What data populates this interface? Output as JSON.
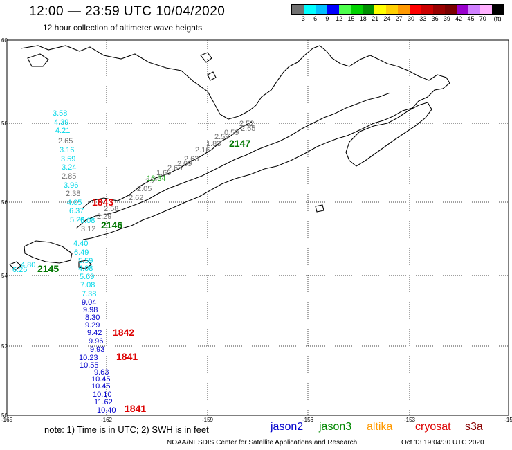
{
  "header": {
    "title": "12:00 — 23:59 UTC 10/04/2020",
    "subtitle": "12 hour collection of altimeter wave heights"
  },
  "legend": {
    "colors": [
      "#707070",
      "#00ffff",
      "#00bfff",
      "#0000ff",
      "#4dff4d",
      "#00d200",
      "#009000",
      "#ffff00",
      "#ffd000",
      "#ff9900",
      "#ff0000",
      "#cc0000",
      "#990000",
      "#7a0000",
      "#9900cc",
      "#d080ff",
      "#ffb0ff",
      "#000000"
    ],
    "labels": [
      "3",
      "6",
      "9",
      "12",
      "15",
      "18",
      "21",
      "24",
      "27",
      "30",
      "33",
      "36",
      "39",
      "42",
      "45",
      "70",
      "(ft)"
    ]
  },
  "axes": {
    "lat_labels": [
      "60",
      "58",
      "56",
      "54",
      "52",
      "50"
    ],
    "lon_labels": [
      "-165",
      "-162",
      "-159",
      "-156",
      "-153",
      "-15"
    ]
  },
  "tracks": {
    "cyan": {
      "color": "#00d8e8",
      "values": [
        "3.58",
        "4.39",
        "4.21",
        "3.16",
        "3.59",
        "3.24",
        "3.96",
        "4.05",
        "6.37",
        "5.20",
        "5.08",
        "4.40",
        "6.49",
        "5.59",
        "4.08",
        "5.69",
        "7.08",
        "7.38",
        "4.80",
        "6.26"
      ]
    },
    "gray": {
      "color": "#707070",
      "values": [
        "2.65",
        "2.85",
        "2.38",
        "2.52",
        "2.65",
        "0.59",
        "2.59",
        "1.83",
        "2.16",
        "2.63",
        "2.09",
        "2.68",
        "1.65",
        "2.21",
        "2.05",
        "2.62",
        "2.58",
        "2.29",
        "3.12"
      ]
    },
    "green": {
      "color": "#22aa22",
      "values": [
        "16.34"
      ]
    },
    "blue": {
      "color": "#0000cc",
      "values": [
        "9.04",
        "9.98",
        "8.30",
        "9.29",
        "9.42",
        "9.96",
        "9.93",
        "10.23",
        "10.55",
        "9.63",
        "10.45",
        "10.45",
        "10.10",
        "11.62",
        "10.40"
      ]
    }
  },
  "time_labels": {
    "red": {
      "color": "#dd0000",
      "values": [
        "1843",
        "1842",
        "1841",
        "1841"
      ]
    },
    "green": {
      "color": "#007700",
      "values": [
        "2147",
        "2146",
        "2145"
      ]
    }
  },
  "footer": {
    "note": "note: 1) Time is in UTC; 2) SWH is in feet",
    "satellites": [
      {
        "name": "jason2",
        "color": "#0000cc"
      },
      {
        "name": "jason3",
        "color": "#008800"
      },
      {
        "name": "altika",
        "color": "#ff9900"
      },
      {
        "name": "cryosat",
        "color": "#dd0000"
      },
      {
        "name": "s3a",
        "color": "#880000"
      }
    ],
    "credit": "NOAA/NESDIS Center for Satellite Applications and Research",
    "timestamp": "Oct 13 19:04:30 UTC 2020"
  }
}
